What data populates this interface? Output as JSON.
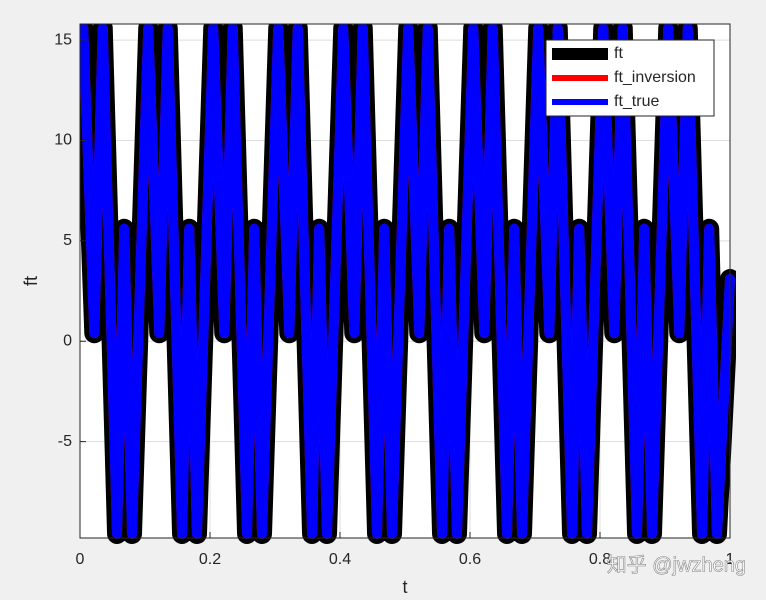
{
  "chart_data": {
    "type": "line",
    "xlabel": "t",
    "ylabel": "ft",
    "x": [
      0.005,
      0.022,
      0.035,
      0.057,
      0.068,
      0.08,
      0.105,
      0.122,
      0.135,
      0.157,
      0.168,
      0.18,
      0.205,
      0.222,
      0.235,
      0.257,
      0.268,
      0.28,
      0.305,
      0.322,
      0.335,
      0.357,
      0.368,
      0.38,
      0.405,
      0.422,
      0.435,
      0.457,
      0.468,
      0.48,
      0.505,
      0.522,
      0.535,
      0.557,
      0.568,
      0.58,
      0.605,
      0.622,
      0.635,
      0.657,
      0.668,
      0.68,
      0.705,
      0.722,
      0.735,
      0.757,
      0.768,
      0.78,
      0.805,
      0.822,
      0.835,
      0.857,
      0.868,
      0.88,
      0.905,
      0.922,
      0.935,
      0.957,
      0.968,
      0.98,
      1.0
    ],
    "series": [
      {
        "name": "ft",
        "color": "#000000",
        "width": 20,
        "values": [
          15.6,
          0.4,
          15.6,
          -9.6,
          5.6,
          -9.6,
          15.6,
          0.4,
          15.6,
          -9.6,
          5.6,
          -9.6,
          15.6,
          0.4,
          15.6,
          -9.6,
          5.6,
          -9.6,
          15.6,
          0.4,
          15.6,
          -9.6,
          5.6,
          -9.6,
          15.6,
          0.4,
          15.6,
          -9.6,
          5.6,
          -9.6,
          15.6,
          0.4,
          15.6,
          -9.6,
          5.6,
          -9.6,
          15.6,
          0.4,
          15.6,
          -9.6,
          5.6,
          -9.6,
          15.6,
          0.4,
          15.6,
          -9.6,
          5.6,
          -9.6,
          15.6,
          0.4,
          15.6,
          -9.6,
          5.6,
          -9.6,
          15.6,
          0.4,
          15.6,
          -9.6,
          5.6,
          -9.6,
          3.1
        ]
      },
      {
        "name": "ft_inversion",
        "color": "#ff0000",
        "width": 10,
        "values": [
          15.6,
          0.4,
          15.6,
          -9.6,
          5.6,
          -9.6,
          15.6,
          0.4,
          15.6,
          -9.6,
          5.6,
          -9.6,
          15.6,
          0.4,
          15.6,
          -9.6,
          5.6,
          -9.6,
          15.6,
          0.4,
          15.6,
          -9.6,
          5.6,
          -9.6,
          15.6,
          0.4,
          15.6,
          -9.6,
          5.6,
          -9.6,
          15.6,
          0.4,
          15.6,
          -9.6,
          5.6,
          -9.6,
          15.6,
          0.4,
          15.6,
          -9.6,
          5.6,
          -9.6,
          15.6,
          0.4,
          15.6,
          -9.6,
          5.6,
          -9.6,
          15.6,
          0.4,
          15.6,
          -9.6,
          5.6,
          -9.6,
          15.6,
          0.4,
          15.6,
          -9.6,
          5.6,
          -9.6,
          3.1
        ]
      },
      {
        "name": "ft_true",
        "color": "#0000ff",
        "width": 10,
        "values": [
          15.6,
          0.4,
          15.6,
          -9.6,
          5.6,
          -9.6,
          15.6,
          0.4,
          15.6,
          -9.6,
          5.6,
          -9.6,
          15.6,
          0.4,
          15.6,
          -9.6,
          5.6,
          -9.6,
          15.6,
          0.4,
          15.6,
          -9.6,
          5.6,
          -9.6,
          15.6,
          0.4,
          15.6,
          -9.6,
          5.6,
          -9.6,
          15.6,
          0.4,
          15.6,
          -9.6,
          5.6,
          -9.6,
          15.6,
          0.4,
          15.6,
          -9.6,
          5.6,
          -9.6,
          15.6,
          0.4,
          15.6,
          -9.6,
          5.6,
          -9.6,
          15.6,
          0.4,
          15.6,
          -9.6,
          5.6,
          -9.6,
          15.6,
          0.4,
          15.6,
          -9.6,
          5.6,
          -9.6,
          3.1
        ]
      }
    ],
    "xlim": [
      0,
      1
    ],
    "xticks": [
      0,
      0.2,
      0.4,
      0.6,
      0.8,
      1
    ],
    "ylim": [
      -9.8,
      15.8
    ],
    "yticks": [
      -5,
      0,
      5,
      10,
      15
    ],
    "grid": true,
    "legend": "northeast",
    "watermark": "知乎 @jwzheng"
  }
}
